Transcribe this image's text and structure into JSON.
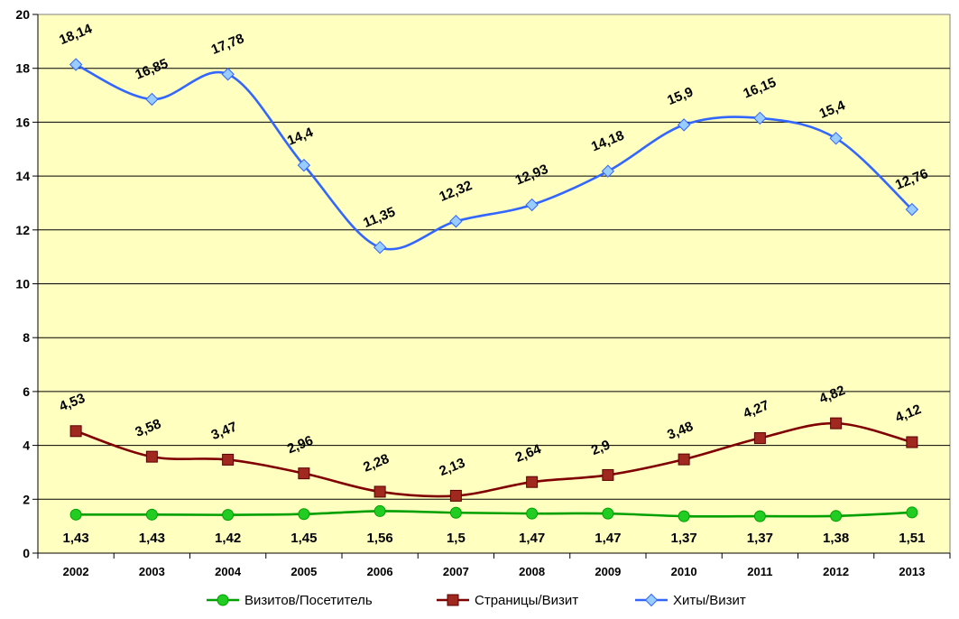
{
  "chart_data": {
    "type": "line",
    "title": "",
    "xlabel": "",
    "ylabel": "",
    "x": [
      "2002",
      "2003",
      "2004",
      "2005",
      "2006",
      "2007",
      "2008",
      "2009",
      "2010",
      "2011",
      "2012",
      "2013"
    ],
    "ylim": [
      0,
      20
    ],
    "yticks": [
      "0",
      "2",
      "4",
      "6",
      "8",
      "10",
      "12",
      "14",
      "16",
      "18",
      "20"
    ],
    "grid": true,
    "legend_position": "bottom",
    "plot_background": "#FFFFC0",
    "series": [
      {
        "name": "Визитов/Посетитель",
        "color": "#00A000",
        "marker": "circle",
        "marker_color": "#22CC22",
        "values": [
          1.43,
          1.43,
          1.42,
          1.45,
          1.56,
          1.5,
          1.47,
          1.47,
          1.37,
          1.37,
          1.38,
          1.51
        ],
        "labels": [
          "1,43",
          "1,43",
          "1,42",
          "1,45",
          "1,56",
          "1,5",
          "1,47",
          "1,47",
          "1,37",
          "1,37",
          "1,38",
          "1,51"
        ],
        "label_position": "below"
      },
      {
        "name": "Страницы/Визит",
        "color": "#800000",
        "marker": "square",
        "marker_color": "#A0281E",
        "values": [
          4.53,
          3.58,
          3.47,
          2.96,
          2.28,
          2.13,
          2.64,
          2.9,
          3.48,
          4.27,
          4.82,
          4.12
        ],
        "labels": [
          "4,53",
          "3,58",
          "3,47",
          "2,96",
          "2,28",
          "2,13",
          "2,64",
          "2,9",
          "3,48",
          "4,27",
          "4,82",
          "4,12"
        ],
        "label_position": "above"
      },
      {
        "name": "Хиты/Визит",
        "color": "#3366FF",
        "marker": "diamond",
        "marker_color": "#99CCFF",
        "values": [
          18.14,
          16.85,
          17.78,
          14.4,
          11.35,
          12.32,
          12.93,
          14.18,
          15.9,
          16.15,
          15.4,
          12.76
        ],
        "labels": [
          "18,14",
          "16,85",
          "17,78",
          "14,4",
          "11,35",
          "12,32",
          "12,93",
          "14,18",
          "15,9",
          "16,15",
          "15,4",
          "12,76"
        ],
        "label_position": "above"
      }
    ]
  }
}
